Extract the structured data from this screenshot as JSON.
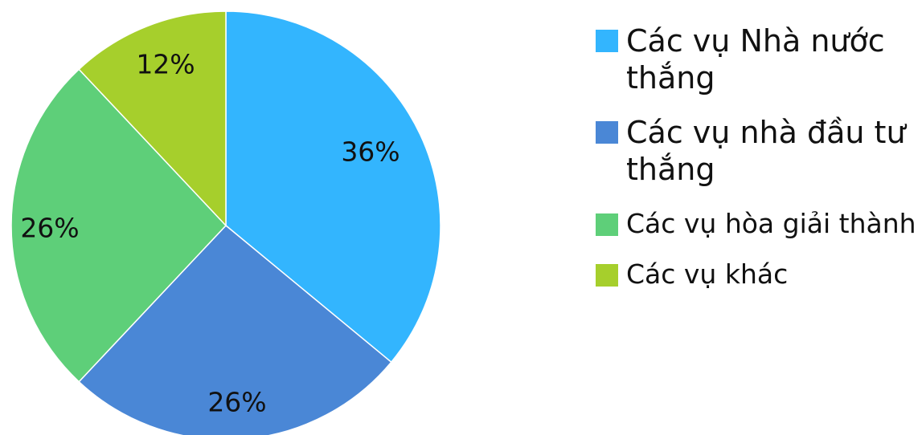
{
  "chart_data": {
    "type": "pie",
    "categories": [
      "Các vụ Nhà nước thắng",
      "Các vụ nhà đầu tư thắng",
      "Các vụ hòa giải thành",
      "Các vụ khác"
    ],
    "values": [
      36,
      26,
      26,
      12
    ],
    "data_labels": [
      "36%",
      "26%",
      "26%",
      "12%"
    ],
    "colors": [
      "#33b5fe",
      "#4a87d6",
      "#5ecf79",
      "#a6cf2c"
    ],
    "title": "",
    "legend_position": "right"
  }
}
